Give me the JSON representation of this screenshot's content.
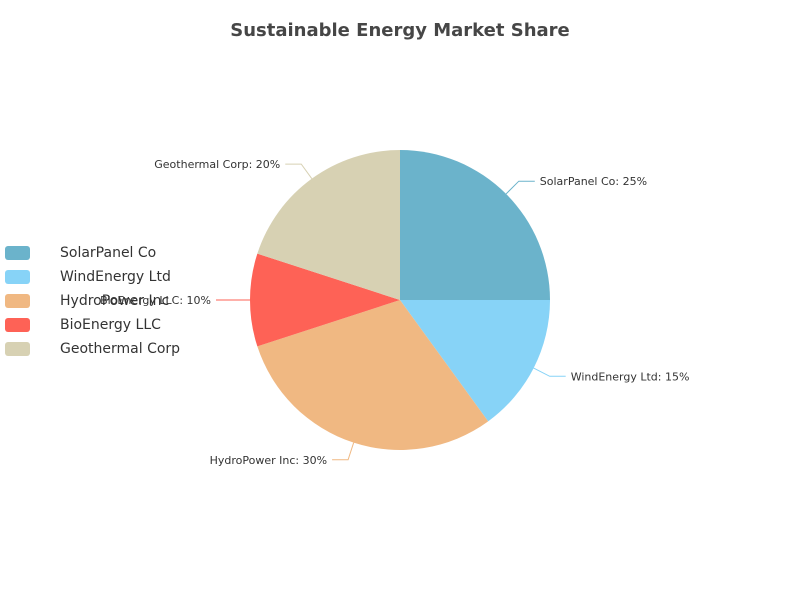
{
  "chart_data": {
    "type": "pie",
    "title": "Sustainable Energy Market Share",
    "legend_position": "left",
    "slices": [
      {
        "name": "SolarPanel Co",
        "value": 25,
        "label": "SolarPanel Co: 25%",
        "color": "#6bb3cb"
      },
      {
        "name": "WindEnergy Ltd",
        "value": 15,
        "label": "WindEnergy Ltd: 15%",
        "color": "#87d3f7"
      },
      {
        "name": "HydroPower Inc",
        "value": 30,
        "label": "HydroPower Inc: 30%",
        "color": "#f0b882"
      },
      {
        "name": "BioEnergy LLC",
        "value": 10,
        "label": "BioEnergy LLC: 10%",
        "color": "#fe6256"
      },
      {
        "name": "Geothermal Corp",
        "value": 20,
        "label": "Geothermal Corp: 20%",
        "color": "#d7d1b3"
      }
    ]
  }
}
